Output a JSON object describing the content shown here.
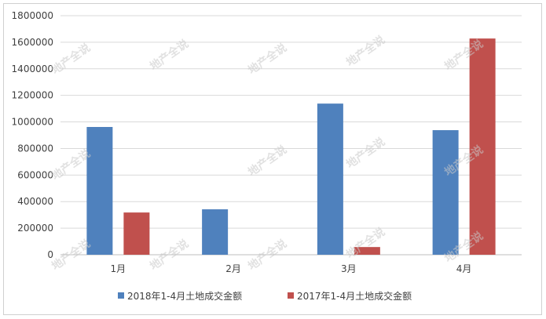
{
  "chart_data": {
    "type": "bar",
    "categories": [
      "1月",
      "2月",
      "3月",
      "4月"
    ],
    "series": [
      {
        "name": "2018年1-4月土地成交金额",
        "color": "#4f81bd",
        "values": [
          962000,
          342000,
          1138000,
          938000
        ]
      },
      {
        "name": "2017年1-4月土地成交金额",
        "color": "#c0504d",
        "values": [
          318000,
          null,
          58000,
          1628000
        ]
      }
    ],
    "ylim": [
      0,
      1800000
    ],
    "yticks": [
      0,
      200000,
      400000,
      600000,
      800000,
      1000000,
      1200000,
      1400000,
      1600000,
      1800000
    ],
    "grid": true,
    "legend_position": "bottom"
  },
  "watermark": "地产全说"
}
